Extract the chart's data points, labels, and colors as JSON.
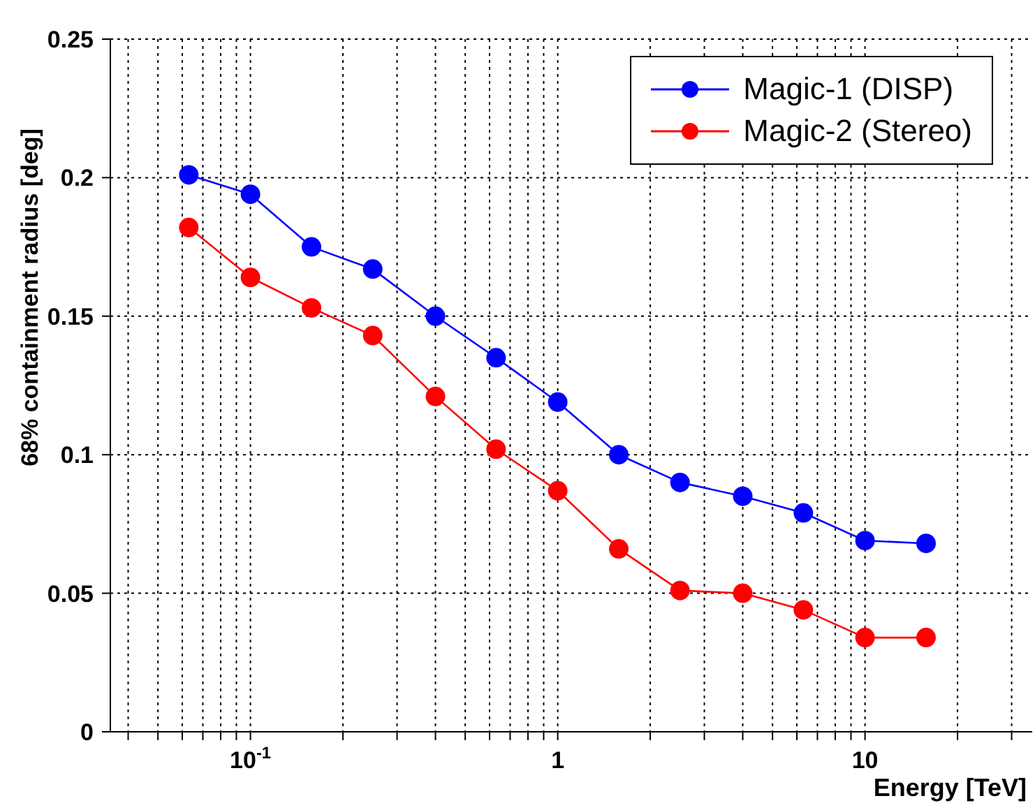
{
  "chart_data": {
    "type": "line",
    "xlabel": "Energy [TeV]",
    "ylabel": "68% containment radius [deg]",
    "x": [
      0.063,
      0.1,
      0.158,
      0.25,
      0.4,
      0.63,
      1,
      1.58,
      2.5,
      4,
      6.3,
      10,
      15.8
    ],
    "series": [
      {
        "name": "Magic-1 (DISP)",
        "color": "#0000ff",
        "values": [
          0.201,
          0.194,
          0.175,
          0.167,
          0.15,
          0.135,
          0.119,
          0.1,
          0.09,
          0.085,
          0.079,
          0.069,
          0.068
        ]
      },
      {
        "name": "Magic-2 (Stereo)",
        "color": "#ff0000",
        "values": [
          0.182,
          0.164,
          0.153,
          0.143,
          0.121,
          0.102,
          0.087,
          0.066,
          0.051,
          0.05,
          0.044,
          0.034,
          0.034
        ]
      }
    ],
    "log": "x",
    "xlim": [
      0.035,
      35
    ],
    "xticks": [
      {
        "value": 0.04,
        "label": null
      },
      {
        "value": 0.05,
        "label": null
      },
      {
        "value": 0.06,
        "label": null
      },
      {
        "value": 0.07,
        "label": null
      },
      {
        "value": 0.08,
        "label": null
      },
      {
        "value": 0.09,
        "label": null
      },
      {
        "value": 0.1,
        "label": "10$^{-1}$"
      },
      {
        "value": 0.2,
        "label": null
      },
      {
        "value": 0.3,
        "label": null
      },
      {
        "value": 0.4,
        "label": null
      },
      {
        "value": 0.5,
        "label": null
      },
      {
        "value": 0.6,
        "label": null
      },
      {
        "value": 0.7,
        "label": null
      },
      {
        "value": 0.8,
        "label": null
      },
      {
        "value": 0.9,
        "label": null
      },
      1,
      {
        "value": 2,
        "label": null
      },
      {
        "value": 3,
        "label": null
      },
      {
        "value": 4,
        "label": null
      },
      {
        "value": 5,
        "label": null
      },
      {
        "value": 6,
        "label": null
      },
      {
        "value": 7,
        "label": null
      },
      {
        "value": 8,
        "label": null
      },
      {
        "value": 9,
        "label": null
      },
      10,
      {
        "value": 20,
        "label": null
      },
      {
        "value": 30,
        "label": null
      }
    ],
    "ylim": [
      0,
      0.25
    ],
    "yticks": [
      0,
      0.05,
      0.1,
      0.15,
      0.2,
      0.25
    ],
    "grid": true,
    "legend": "top right",
    "marker": "circle",
    "line_style": "solid"
  }
}
